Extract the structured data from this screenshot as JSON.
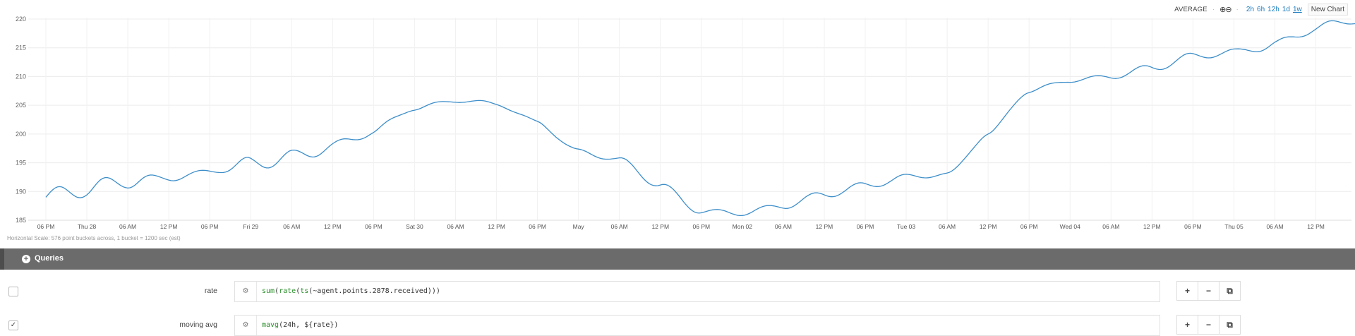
{
  "toolbar": {
    "aggregation": "AVERAGE",
    "separator": "·",
    "zoom_icons": "⊕⊖",
    "ranges": [
      "2h",
      "6h",
      "12h",
      "1d",
      "1w"
    ],
    "new_chart": "New Chart"
  },
  "chart_data": {
    "type": "line",
    "title": "",
    "xlabel": "",
    "ylabel": "",
    "ylim": [
      185,
      220
    ],
    "y_ticks": [
      "220",
      "215",
      "210",
      "205",
      "200",
      "195",
      "190",
      "185"
    ],
    "x_tick_labels": [
      "06 PM",
      "Thu 28",
      "06 AM",
      "12 PM",
      "06 PM",
      "Fri 29",
      "06 AM",
      "12 PM",
      "06 PM",
      "Sat 30",
      "06 AM",
      "12 PM",
      "06 PM",
      "May",
      "06 AM",
      "12 PM",
      "06 PM",
      "Mon 02",
      "06 AM",
      "12 PM",
      "06 PM",
      "Tue 03",
      "06 AM",
      "12 PM",
      "06 PM",
      "Wed 04",
      "06 AM",
      "12 PM",
      "06 PM",
      "Thu 05",
      "06 AM",
      "12 PM"
    ],
    "grid": true,
    "series": [
      {
        "color": "#3d8ec9",
        "x_hours": [
          0,
          6,
          12,
          18,
          24,
          30,
          36,
          42,
          48,
          54,
          60,
          66,
          72,
          78,
          84,
          90,
          96,
          102,
          108,
          114,
          120,
          126,
          132,
          138,
          144,
          150,
          156,
          162,
          168,
          174,
          180,
          186,
          192
        ],
        "y_mean": [
          189,
          190.5,
          191.8,
          192.3,
          193.5,
          194.8,
          196,
          197.8,
          200.5,
          204.5,
          205.8,
          205.3,
          202,
          197,
          195.5,
          191,
          186.5,
          186.3,
          187.5,
          189.5,
          191,
          192.5,
          193,
          200,
          207.5,
          209.3,
          210,
          211.5,
          213.5,
          214.3,
          215.5,
          218.5,
          219.8
        ],
        "daily_amplitude": [
          1.5,
          1.5,
          1.2,
          0.5,
          0.3,
          1.2,
          1.2,
          1.0,
          0.8,
          0.4,
          0.3,
          0.4,
          0.5,
          0.4,
          0.4,
          0.5,
          0.4,
          0.5,
          0.5,
          0.6,
          0.6,
          0.5,
          0.3,
          0.5,
          0.4,
          0.3,
          0.4,
          0.6,
          0.6,
          0.5,
          0.9,
          0.9,
          0.6
        ]
      }
    ]
  },
  "hscale_text": "Horizontal Scale: 576 point buckets across, 1 bucket = 1200 sec (est)",
  "queries_bar": {
    "plus_icon": "+",
    "title": "Queries"
  },
  "queries": [
    {
      "checked": false,
      "checkbox_glyph": "",
      "name": "rate",
      "gear_icon": "⚙",
      "expr": {
        "fn1": "sum",
        "t1": "(",
        "fn2": "rate",
        "t2": "(",
        "fn3": "ts",
        "t3": "(~agent.points.2878.received)))"
      }
    },
    {
      "checked": true,
      "checkbox_glyph": "✓",
      "name": "moving avg",
      "gear_icon": "⚙",
      "expr": {
        "fn1": "mavg",
        "t1": "(24h, ${rate})"
      }
    }
  ],
  "row_buttons": [
    "+",
    "−",
    "⧉"
  ]
}
